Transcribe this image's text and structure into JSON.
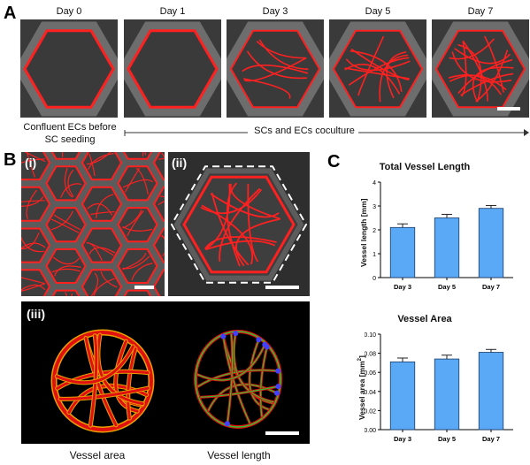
{
  "panels": {
    "a": "A",
    "b": "B",
    "c": "C"
  },
  "panelA": {
    "days": [
      "Day 0",
      "Day 1",
      "Day 3",
      "Day 5",
      "Day 7"
    ],
    "caption_left": [
      "Confluent ECs before",
      "SC seeding"
    ],
    "caption_right": "SCs and ECs coculture"
  },
  "panelB": {
    "label_i": "(i)",
    "label_ii": "(ii)",
    "label_iii": "(iii)",
    "caption_area": "Vessel area",
    "caption_length": "Vessel length"
  },
  "colors": {
    "vessel": "#ff2020",
    "bar": "#5aa9f7",
    "bar_edge": "#1a3a66"
  },
  "chart_data": [
    {
      "type": "bar",
      "title": "Total Vessel Length",
      "ylabel": "Vessel length [mm]",
      "categories": [
        "Day 3",
        "Day 5",
        "Day 7"
      ],
      "values": [
        2.1,
        2.5,
        2.9
      ],
      "errors": [
        0.15,
        0.15,
        0.12
      ],
      "ylim": [
        0,
        4
      ],
      "yticks": [
        "0",
        "1",
        "2",
        "3",
        "4"
      ]
    },
    {
      "type": "bar",
      "title": "Vessel Area",
      "ylabel": "Vessel area [mm",
      "ylabel_sup": "2",
      "ylabel_end": "]",
      "categories": [
        "Day 3",
        "Day 5",
        "Day 7"
      ],
      "values": [
        0.071,
        0.074,
        0.081
      ],
      "errors": [
        0.004,
        0.004,
        0.003
      ],
      "ylim": [
        0,
        0.1
      ],
      "yticks": [
        "0.00",
        "0.02",
        "0.04",
        "0.06",
        "0.08",
        "0.10"
      ]
    }
  ]
}
